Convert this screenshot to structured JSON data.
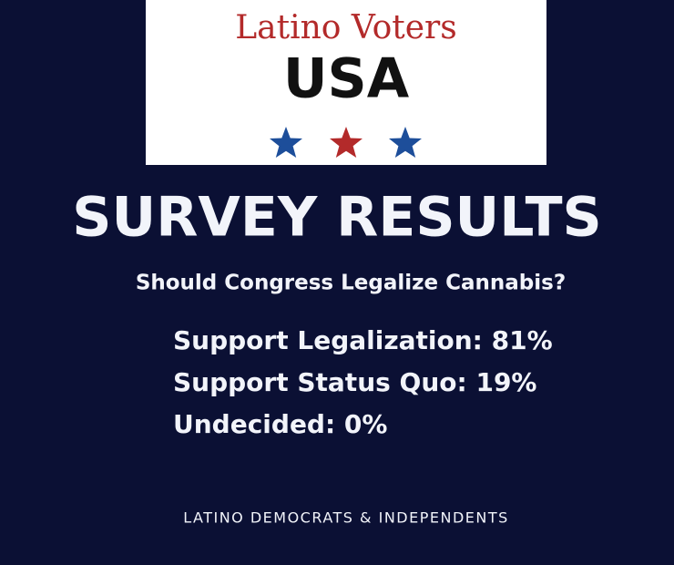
{
  "logo": {
    "line1": "Latino Voters",
    "line2": "USA"
  },
  "title": "SURVEY RESULTS",
  "question": "Should Congress Legalize Cannabis?",
  "results": [
    "Support Legalization: 81%",
    "Support Status Quo: 19%",
    "Undecided: 0%"
  ],
  "footer": "LATINO DEMOCRATS & INDEPENDENTS"
}
